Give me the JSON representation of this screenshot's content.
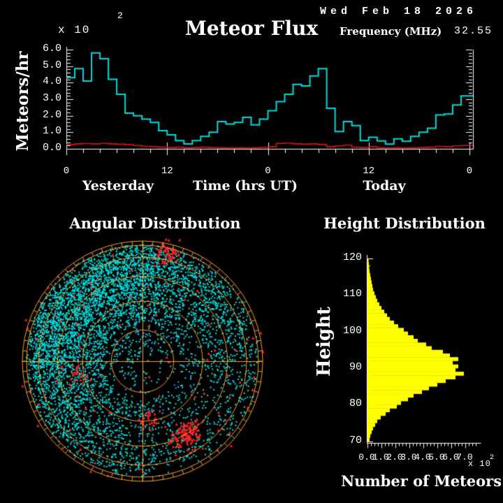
{
  "header": {
    "date": "Wed Feb 18 2026",
    "frequency_label": "Frequency (MHz)",
    "frequency_value": "32.55"
  },
  "chart_data": [
    {
      "id": "flux",
      "type": "line",
      "step": true,
      "title": "Meteor Flux",
      "xlabel": "Time (hrs UT)",
      "ylabel": "Meteors/hr",
      "section_labels": [
        "Yesterday",
        "Today"
      ],
      "y_multiplier_base": "x 10",
      "y_multiplier_exp": "2",
      "ylim": [
        0,
        6
      ],
      "y_unit_multiplier": 100,
      "y_ticks": [
        "0.0",
        "1.0",
        "2.0",
        "3.0",
        "4.0",
        "5.0",
        "6.0"
      ],
      "y_minor_step": 0.2,
      "x_hours_range": [
        0,
        48
      ],
      "x_minor_step_hours": 2,
      "x_tick_hours": [
        0,
        12,
        24,
        36,
        48
      ],
      "x_tick_labels": [
        "0",
        "12",
        "0",
        "12",
        "0"
      ],
      "grid": false,
      "series": [
        {
          "name": "meteor-rate-cyan",
          "color": "#00dcdc",
          "values": [
            4.3,
            4.85,
            4.1,
            5.8,
            5.45,
            4.2,
            3.3,
            2.15,
            2.0,
            1.8,
            1.6,
            1.1,
            0.85,
            0.5,
            0.3,
            0.5,
            0.75,
            1.0,
            1.65,
            1.5,
            1.6,
            1.9,
            1.45,
            1.8,
            2.3,
            2.85,
            3.3,
            3.9,
            3.8,
            4.4,
            4.85,
            2.45,
            1.05,
            1.65,
            1.4,
            0.5,
            0.7,
            0.48,
            0.28,
            0.6,
            0.45,
            0.75,
            1.0,
            1.25,
            2.05,
            2.1,
            2.65,
            3.2
          ]
        },
        {
          "name": "meteor-rate-red",
          "color": "#e01010",
          "values": [
            0.25,
            0.3,
            0.32,
            0.3,
            0.33,
            0.3,
            0.28,
            0.25,
            0.2,
            0.15,
            0.12,
            0.1,
            0.08,
            0.1,
            0.06,
            0.08,
            0.1,
            0.08,
            0.06,
            0.05,
            0.06,
            0.05,
            0.06,
            0.08,
            0.12,
            0.33,
            0.35,
            0.3,
            0.28,
            0.3,
            0.25,
            0.12,
            0.18,
            0.22,
            0.1,
            0.08,
            0.12,
            0.06,
            0.05,
            0.06,
            0.05,
            0.06,
            0.08,
            0.1,
            0.15,
            0.12,
            0.18,
            0.2
          ]
        }
      ]
    },
    {
      "id": "angular",
      "type": "scatter",
      "projection": "polar",
      "title": "Angular Distribution",
      "ring_fractions": [
        0.26,
        0.5,
        0.707,
        0.866,
        0.965,
        1.0
      ],
      "ring_color": "#ffa028",
      "crosshair": true,
      "degree_tick_step": 5,
      "seed": 20260218,
      "point_groups": [
        {
          "name": "cyan-echoes",
          "color": "#00e4e4",
          "count": 5200,
          "marker": "square"
        },
        {
          "name": "cyan-dense-band",
          "color": "#00e4e4",
          "count": 650,
          "marker": "square"
        },
        {
          "name": "red-echoes",
          "color": "#ff2020",
          "count": 300,
          "marker": "triangle"
        },
        {
          "name": "blue-echoes",
          "color": "#4d8fff",
          "count": 70,
          "marker": "square"
        }
      ]
    },
    {
      "id": "height",
      "type": "bar",
      "orientation": "horizontal",
      "title": "Height Distribution",
      "xlabel": "Number of Meteors",
      "ylabel": "Height",
      "x_multiplier_base": "x 10",
      "x_multiplier_exp": "2",
      "xlim": [
        0,
        7
      ],
      "x_unit_multiplier": 100,
      "x_ticks": [
        "0.0",
        "1.0",
        "2.0",
        "3.0",
        "4.0",
        "5.0",
        "6.0",
        "7.0"
      ],
      "y_tick_values": [
        70,
        80,
        90,
        100,
        110,
        120
      ],
      "bin_start_km": 70,
      "bin_size_km": 1,
      "bar_color": "#ffff00",
      "values": [
        0.15,
        0.2,
        0.3,
        0.4,
        0.55,
        0.7,
        0.95,
        1.3,
        1.6,
        2.1,
        2.4,
        2.9,
        3.3,
        3.9,
        4.4,
        5.0,
        5.6,
        6.3,
        6.9,
        6.3,
        6.5,
        6.1,
        6.5,
        5.9,
        5.4,
        4.6,
        4.2,
        3.6,
        3.3,
        2.9,
        2.6,
        2.2,
        1.9,
        1.6,
        1.4,
        1.2,
        1.0,
        0.85,
        0.7,
        0.6,
        0.5,
        0.4,
        0.35,
        0.3,
        0.25,
        0.2,
        0.15,
        0.12,
        0.1,
        0.08
      ]
    }
  ]
}
